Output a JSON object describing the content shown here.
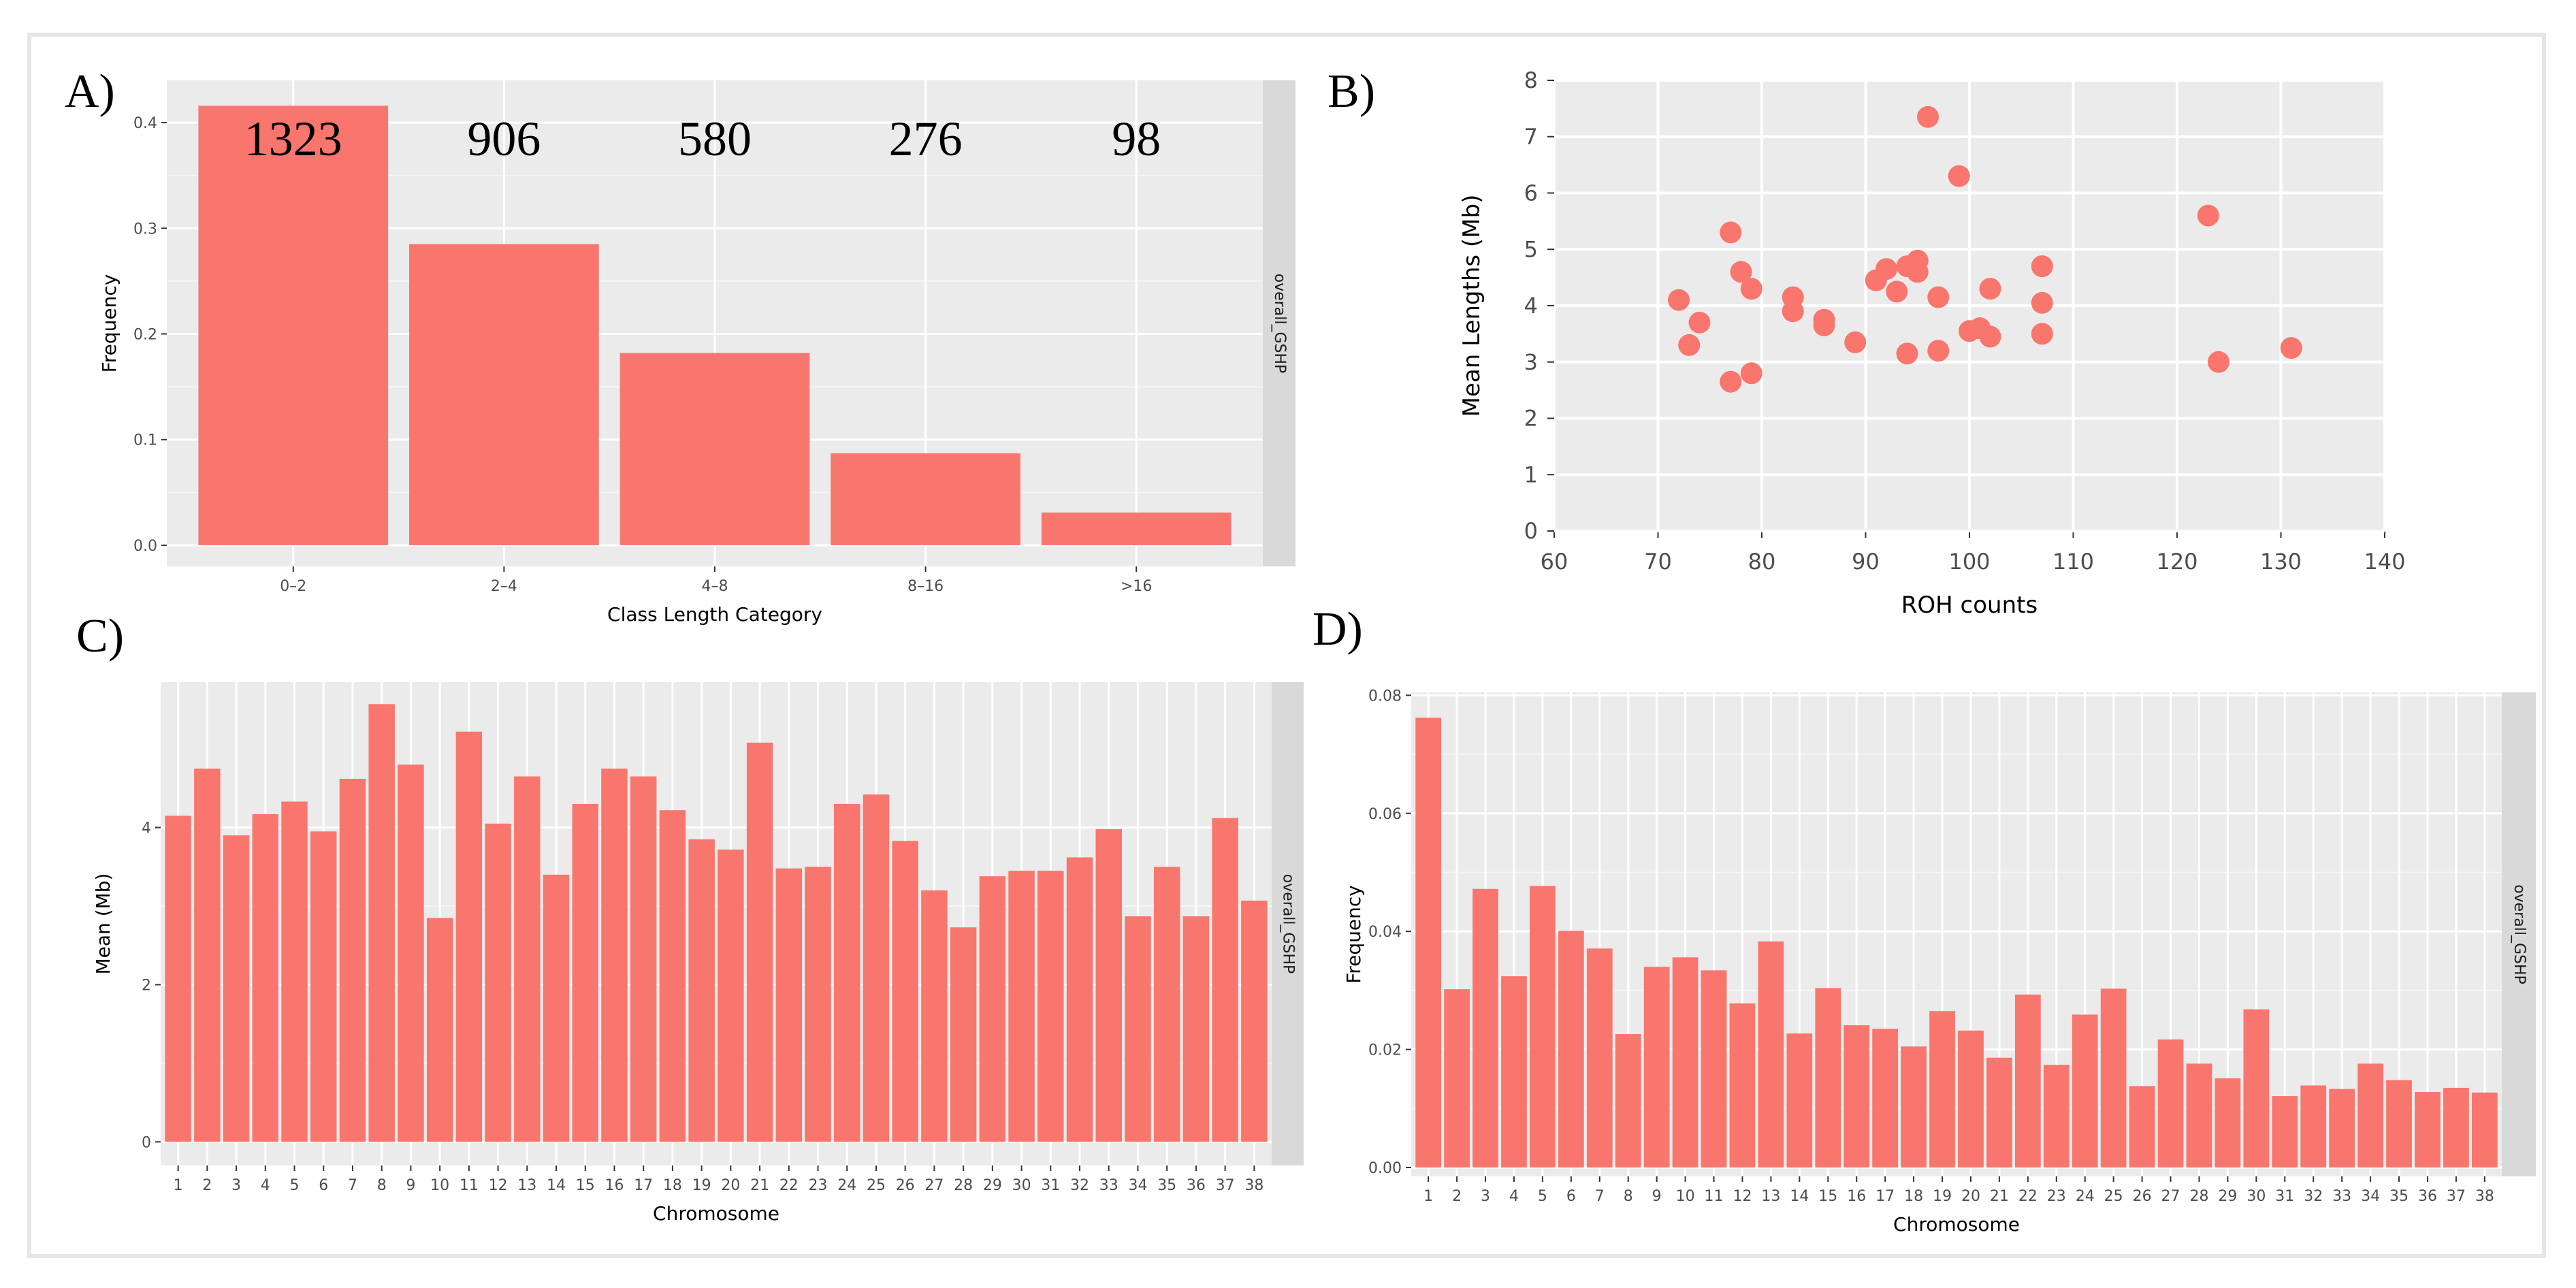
{
  "colors": {
    "bar": "#f8766d",
    "panel_bg": "#ebebeb",
    "grid": "#ffffff",
    "strip": "#d9d9d9"
  },
  "chart_data": [
    {
      "id": "A",
      "type": "bar",
      "panel_label": "A)",
      "categories": [
        "0–2",
        "2–4",
        "4–8",
        "8–16",
        ">16"
      ],
      "values": [
        0.416,
        0.285,
        0.182,
        0.087,
        0.031
      ],
      "counts": [
        "1323",
        "906",
        "580",
        "276",
        "98"
      ],
      "xlabel": "Class Length Category",
      "ylabel": "Frequency",
      "ylim": [
        -0.02,
        0.44
      ],
      "yticks": [
        0.0,
        0.1,
        0.2,
        0.3,
        0.4
      ],
      "ytick_labels": [
        "0.0",
        "0.1",
        "0.2",
        "0.3",
        "0.4"
      ],
      "facet_label": "overall_GSHP"
    },
    {
      "id": "B",
      "type": "scatter",
      "panel_label": "B)",
      "xlabel": "ROH counts",
      "ylabel": "Mean Lengths (Mb)",
      "xlim": [
        60,
        140
      ],
      "ylim": [
        0,
        8
      ],
      "xticks": [
        60,
        70,
        80,
        90,
        100,
        110,
        120,
        130,
        140
      ],
      "yticks": [
        0,
        1,
        2,
        3,
        4,
        5,
        6,
        7,
        8
      ],
      "x": [
        72,
        73,
        74,
        77,
        77,
        78,
        79,
        79,
        83,
        83,
        86,
        86,
        89,
        91,
        92,
        93,
        94,
        94,
        95,
        95,
        96,
        97,
        97,
        99,
        100,
        101,
        102,
        102,
        107,
        107,
        107,
        123,
        124,
        131
      ],
      "y": [
        4.1,
        3.3,
        3.7,
        5.3,
        2.65,
        4.6,
        4.3,
        2.8,
        4.15,
        3.9,
        3.75,
        3.65,
        3.35,
        4.45,
        4.65,
        4.25,
        4.7,
        3.15,
        4.8,
        4.6,
        7.35,
        4.15,
        3.2,
        6.3,
        3.55,
        3.6,
        4.3,
        3.45,
        4.7,
        4.05,
        3.5,
        5.6,
        3.0,
        3.25
      ]
    },
    {
      "id": "C",
      "type": "bar",
      "panel_label": "C)",
      "categories": [
        "1",
        "2",
        "3",
        "4",
        "5",
        "6",
        "7",
        "8",
        "9",
        "10",
        "11",
        "12",
        "13",
        "14",
        "15",
        "16",
        "17",
        "18",
        "19",
        "20",
        "21",
        "22",
        "23",
        "24",
        "25",
        "26",
        "27",
        "28",
        "29",
        "30",
        "31",
        "32",
        "33",
        "34",
        "35",
        "36",
        "37",
        "38"
      ],
      "values": [
        4.15,
        4.75,
        3.9,
        4.17,
        4.33,
        3.95,
        4.62,
        5.57,
        4.8,
        2.85,
        5.22,
        4.05,
        4.65,
        3.4,
        4.3,
        4.75,
        4.65,
        4.22,
        3.85,
        3.72,
        5.08,
        3.48,
        3.5,
        4.3,
        4.42,
        3.83,
        3.2,
        2.73,
        3.38,
        3.45,
        3.45,
        3.62,
        3.98,
        2.87,
        3.5,
        2.87,
        4.12,
        3.07
      ],
      "xlabel": "Chromosome",
      "ylabel": "Mean (Mb)",
      "ylim": [
        -0.3,
        5.85
      ],
      "yticks": [
        0,
        2,
        4
      ],
      "ytick_labels": [
        "0",
        "2",
        "4"
      ],
      "facet_label": "overall_GSHP"
    },
    {
      "id": "D",
      "type": "bar",
      "panel_label": "D)",
      "categories": [
        "1",
        "2",
        "3",
        "4",
        "5",
        "6",
        "7",
        "8",
        "9",
        "10",
        "11",
        "12",
        "13",
        "14",
        "15",
        "16",
        "17",
        "18",
        "19",
        "20",
        "21",
        "22",
        "23",
        "24",
        "25",
        "26",
        "27",
        "28",
        "29",
        "30",
        "31",
        "32",
        "33",
        "34",
        "35",
        "36",
        "37",
        "38"
      ],
      "values": [
        0.0762,
        0.0302,
        0.0472,
        0.0324,
        0.0477,
        0.0401,
        0.0371,
        0.0226,
        0.034,
        0.0356,
        0.0334,
        0.0278,
        0.0383,
        0.0227,
        0.0304,
        0.0241,
        0.0235,
        0.0205,
        0.0265,
        0.0232,
        0.0186,
        0.0293,
        0.0174,
        0.0259,
        0.0303,
        0.0138,
        0.0217,
        0.0176,
        0.0151,
        0.0268,
        0.0121,
        0.0139,
        0.0133,
        0.0176,
        0.0148,
        0.0128,
        0.0135,
        0.0127
      ],
      "xlabel": "Chromosome",
      "ylabel": "Frequency",
      "ylim": [
        -0.0015,
        0.0805
      ],
      "yticks": [
        0.0,
        0.02,
        0.04,
        0.06,
        0.08
      ],
      "ytick_labels": [
        "0.00",
        "0.02",
        "0.04",
        "0.06",
        "0.08"
      ],
      "facet_label": "overall_GSHP"
    }
  ]
}
